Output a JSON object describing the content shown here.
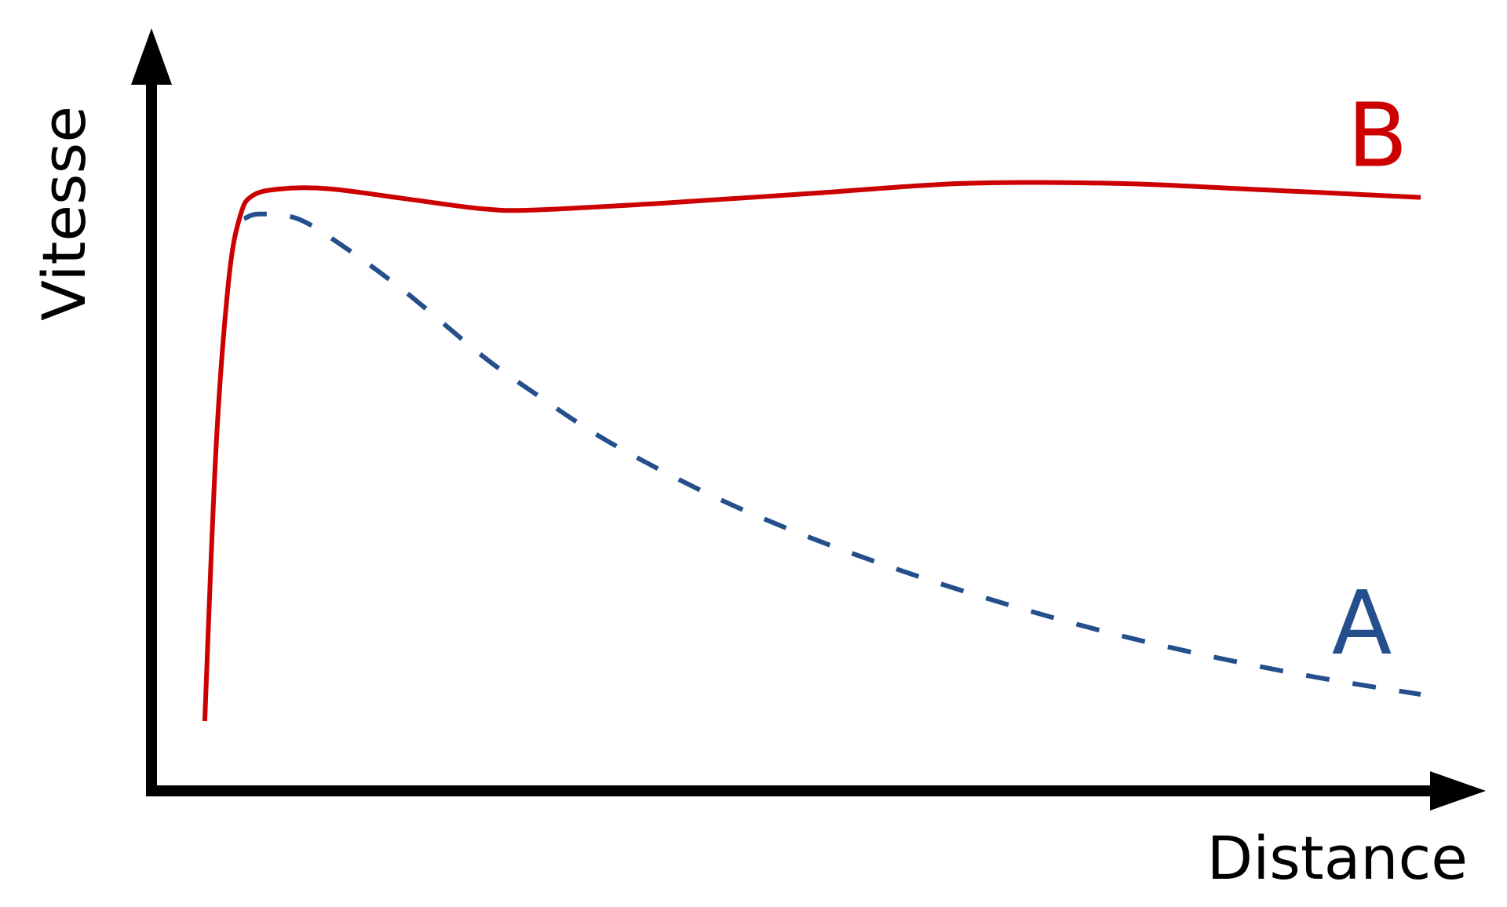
{
  "chart_data": {
    "type": "line",
    "title": "",
    "xlabel": "Distance",
    "ylabel": "Vitesse",
    "grid": false,
    "legend": "none",
    "xlim": [
      0,
      100
    ],
    "ylim": [
      0,
      100
    ],
    "series": [
      {
        "name": "B",
        "color": "#cc0000",
        "style": "solid",
        "x": [
          4.2,
          5.1,
          6.1,
          7.0,
          8.0,
          10.3,
          14.0,
          20.0,
          26.0,
          30.0,
          40.0,
          52.0,
          64.0,
          76.0,
          88.0,
          100.0
        ],
        "y": [
          10.5,
          52.0,
          77.0,
          86.5,
          89.5,
          90.5,
          90.5,
          89.0,
          87.5,
          87.3,
          88.3,
          89.8,
          91.3,
          91.3,
          90.3,
          89.2
        ]
      },
      {
        "name": "A",
        "color": "#254f8c",
        "style": "dashed",
        "x": [
          7.3,
          8.5,
          11.5,
          15.0,
          20.0,
          26.0,
          30.0,
          36.0,
          44.0,
          52.0,
          60.0,
          68.0,
          76.0,
          84.0,
          92.0,
          100.0
        ],
        "y": [
          86.0,
          86.7,
          86.0,
          82.0,
          75.0,
          65.5,
          60.0,
          52.5,
          44.5,
          38.0,
          32.5,
          27.7,
          23.5,
          20.0,
          17.0,
          14.5
        ]
      }
    ]
  }
}
